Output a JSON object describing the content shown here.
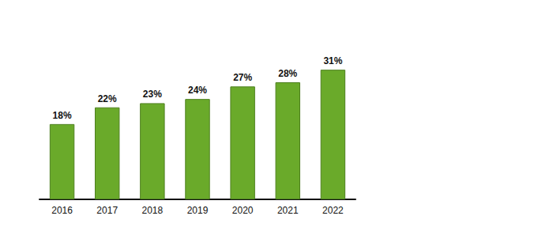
{
  "chart_data": {
    "type": "bar",
    "categories": [
      "2016",
      "2017",
      "2018",
      "2019",
      "2020",
      "2021",
      "2022"
    ],
    "values": [
      18,
      22,
      23,
      24,
      27,
      28,
      31
    ],
    "value_labels": [
      "18%",
      "22%",
      "23%",
      "24%",
      "27%",
      "28%",
      "31%"
    ],
    "color": "#6aaa2a",
    "ylim": [
      0,
      42
    ],
    "grid": false,
    "data_labels": true,
    "tick_labels": "x"
  }
}
